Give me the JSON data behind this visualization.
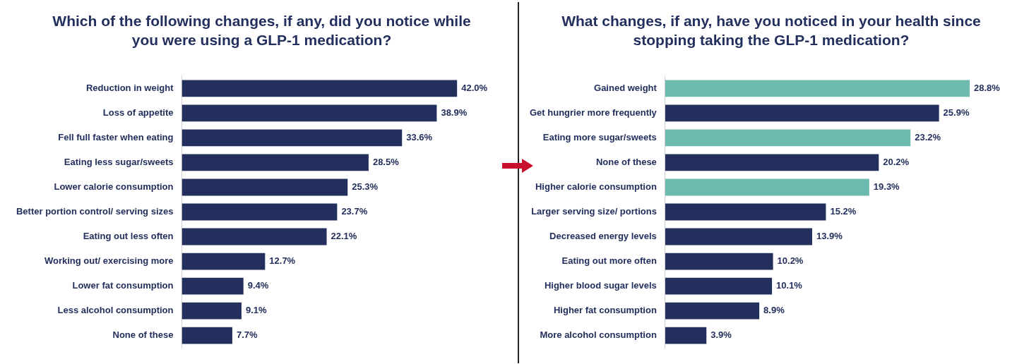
{
  "chart_data": [
    {
      "type": "bar",
      "orientation": "horizontal",
      "title": "Which of the following changes, if any, did you notice while you were using a GLP-1 medication?",
      "categories": [
        "Reduction in weight",
        "Loss of appetite",
        "Fell full faster when eating",
        "Eating less sugar/sweets",
        "Lower calorie consumption",
        "Better portion control/ serving sizes",
        "Eating out less often",
        "Working out/ exercising more",
        "Lower fat consumption",
        "Less alcohol consumption",
        "None of these"
      ],
      "values": [
        42.0,
        38.9,
        33.6,
        28.5,
        25.3,
        23.7,
        22.1,
        12.7,
        9.4,
        9.1,
        7.7
      ],
      "value_labels": [
        "42.0%",
        "38.9%",
        "33.6%",
        "28.5%",
        "25.3%",
        "23.7%",
        "22.1%",
        "12.7%",
        "9.4%",
        "9.1%",
        "7.7%"
      ],
      "color": "#232f5c"
    },
    {
      "type": "bar",
      "orientation": "horizontal",
      "title": "What changes, if any, have you noticed in your health since stopping taking the GLP-1 medication?",
      "categories": [
        "Gained weight",
        "Get hungrier more frequently",
        "Eating more sugar/sweets",
        "None of these",
        "Higher calorie consumption",
        "Larger serving size/ portions",
        "Decreased energy levels",
        "Eating out more often",
        "Higher blood sugar levels",
        "Higher fat consumption",
        "More alcohol consumption"
      ],
      "values": [
        28.8,
        25.9,
        23.2,
        20.2,
        19.3,
        15.2,
        13.9,
        10.2,
        10.1,
        8.9,
        3.9
      ],
      "value_labels": [
        "28.8%",
        "25.9%",
        "23.2%",
        "20.2%",
        "19.3%",
        "15.2%",
        "13.9%",
        "10.2%",
        "10.1%",
        "8.9%",
        "3.9%"
      ],
      "colors": [
        "#6dbbae",
        "#232f5c",
        "#6dbbae",
        "#232f5c",
        "#6dbbae",
        "#232f5c",
        "#232f5c",
        "#232f5c",
        "#232f5c",
        "#232f5c",
        "#232f5c"
      ]
    }
  ]
}
